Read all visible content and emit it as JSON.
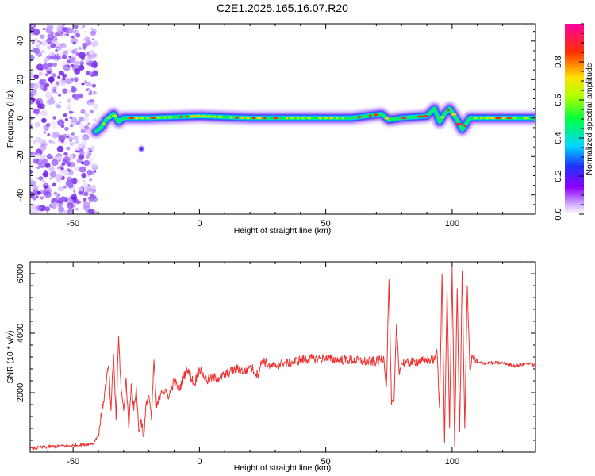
{
  "title": "C2E1.2025.165.16.07.R20",
  "colors": {
    "snr_line": "#ee3333",
    "frame": "#000000"
  },
  "chart_data": [
    {
      "type": "heatmap",
      "xlabel": "Height of straight line (km)",
      "ylabel": "Frequency (Hz)",
      "xlim": [
        -67,
        133
      ],
      "ylim": [
        -50,
        49
      ],
      "xticks": [
        -50,
        0,
        50,
        100
      ],
      "xtick_labels": [
        "-50",
        "0",
        "50",
        "100"
      ],
      "yticks": [
        -40,
        -20,
        0,
        20,
        40
      ],
      "ytick_labels": [
        "-40",
        "-20",
        "0",
        "20",
        "40"
      ],
      "colorbar": {
        "label": "Normalized spectral amplitude",
        "range": [
          0,
          1
        ],
        "ticks": [
          0.0,
          0.2,
          0.4,
          0.6,
          0.8
        ],
        "tick_labels": [
          "0.0",
          "0.2",
          "0.4",
          "0.6",
          "0.8"
        ],
        "colormap": [
          "#ffffff",
          "#a000ff",
          "#3030ff",
          "#00d0ff",
          "#00ff60",
          "#c0ff00",
          "#ffc000",
          "#ff2000",
          "#ff00a0"
        ]
      },
      "noise_region_x": [
        -67,
        -41
      ],
      "band_center_hz": [
        {
          "x": -41,
          "y": -7
        },
        {
          "x": -39,
          "y": -5
        },
        {
          "x": -37,
          "y": -1
        },
        {
          "x": -34,
          "y": 2
        },
        {
          "x": -32,
          "y": -2
        },
        {
          "x": -30,
          "y": 0
        },
        {
          "x": -20,
          "y": 0
        },
        {
          "x": 0,
          "y": 1
        },
        {
          "x": 20,
          "y": 0
        },
        {
          "x": 40,
          "y": 0
        },
        {
          "x": 60,
          "y": 0
        },
        {
          "x": 72,
          "y": 2
        },
        {
          "x": 75,
          "y": -1
        },
        {
          "x": 80,
          "y": 0
        },
        {
          "x": 90,
          "y": 1
        },
        {
          "x": 93,
          "y": 5
        },
        {
          "x": 95,
          "y": -2
        },
        {
          "x": 97,
          "y": 2
        },
        {
          "x": 99,
          "y": 5
        },
        {
          "x": 102,
          "y": -1
        },
        {
          "x": 104,
          "y": -6
        },
        {
          "x": 107,
          "y": 0
        },
        {
          "x": 133,
          "y": 0
        }
      ],
      "blob": {
        "x": -23,
        "y": -16
      }
    },
    {
      "type": "line",
      "xlabel": "Height of straight line (km)",
      "ylabel": "SNR (10 * v/v)",
      "xlim": [
        -67,
        133
      ],
      "ylim": [
        0,
        6400
      ],
      "xticks": [
        -50,
        0,
        50,
        100
      ],
      "xtick_labels": [
        "-50",
        "0",
        "50",
        "100"
      ],
      "yticks": [
        2000,
        4000,
        6000
      ],
      "ytick_labels": [
        "2000",
        "4000",
        "6000"
      ],
      "series": [
        {
          "x": [
            -67,
            -60,
            -50,
            -42,
            -40,
            -38,
            -36,
            -35,
            -34,
            -33,
            -32,
            -31,
            -30,
            -29,
            -28,
            -27,
            -26,
            -25,
            -24,
            -23,
            -22,
            -21,
            -20,
            -19,
            -18,
            -17,
            -15,
            -12,
            -10,
            -8,
            -5,
            -2,
            0,
            3,
            5,
            8,
            10,
            12,
            15,
            18,
            20,
            23,
            25,
            28,
            30,
            33,
            35,
            40,
            45,
            50,
            55,
            60,
            65,
            70,
            73,
            74,
            75,
            76,
            77,
            78,
            79,
            80,
            82,
            85,
            88,
            90,
            92,
            93,
            94,
            95,
            96,
            97,
            98,
            99,
            100,
            101,
            102,
            103,
            104,
            105,
            106,
            107,
            108,
            110,
            115,
            120,
            125,
            130,
            133
          ],
          "y": [
            120,
            180,
            220,
            300,
            600,
            1700,
            2900,
            1400,
            3300,
            1100,
            3900,
            2100,
            1400,
            2500,
            800,
            2300,
            1400,
            2200,
            700,
            1100,
            500,
            1700,
            1900,
            1100,
            3100,
            1500,
            2100,
            1900,
            2400,
            2100,
            2800,
            2300,
            2800,
            2400,
            2500,
            2500,
            2600,
            2700,
            2800,
            2700,
            2900,
            2600,
            3100,
            2900,
            2900,
            3000,
            3000,
            3100,
            3150,
            3150,
            3100,
            3100,
            3050,
            3050,
            3150,
            2200,
            5800,
            1600,
            1700,
            4300,
            2700,
            3000,
            3000,
            3050,
            3050,
            3100,
            3100,
            3100,
            3400,
            1500,
            6000,
            300,
            5500,
            800,
            6200,
            200,
            5500,
            700,
            6100,
            800,
            5600,
            2800,
            3200,
            3000,
            3000,
            3000,
            2900,
            3000,
            2900
          ]
        }
      ]
    }
  ]
}
